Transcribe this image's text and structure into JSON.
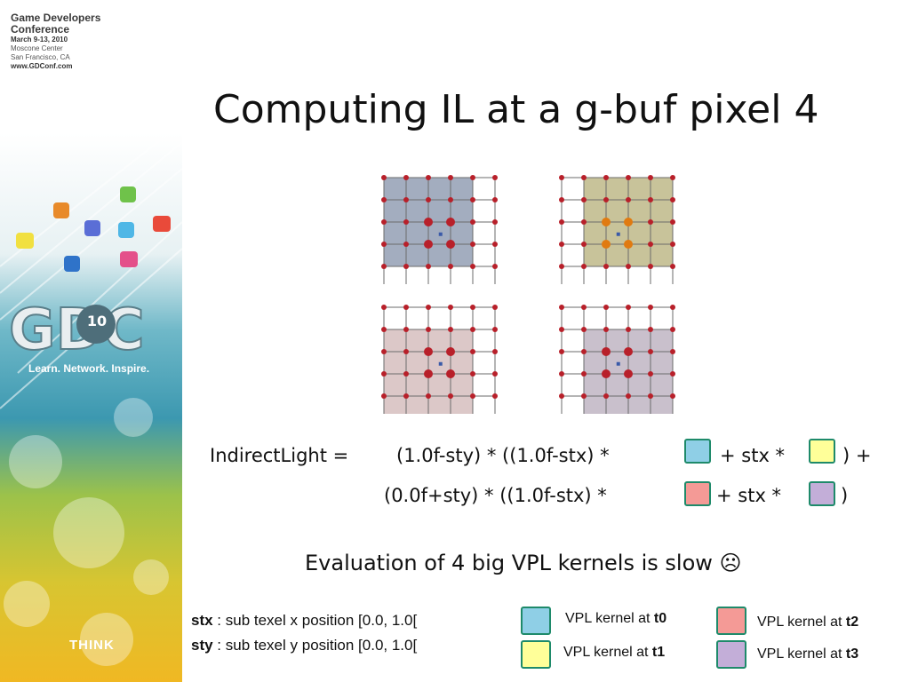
{
  "header": {
    "conf_name_1": "Game Developers",
    "conf_name_2": "Conference",
    "dates": "March 9-13, 2010",
    "venue": "Moscone Center",
    "city": "San Francisco, CA",
    "website": "www.GDConf.com",
    "tagline": "Learn. Network. Inspire.",
    "badge_number": "10",
    "sponsor": "THINK"
  },
  "slide": {
    "title": "Computing IL at a g-buf pixel 4"
  },
  "equation": {
    "lhs": "IndirectLight =",
    "line1_a": "(1.0f-sty) * ((1.0f-stx) *",
    "line1_b": "+ stx *",
    "line1_c": ") +",
    "line2_a": "(0.0f+sty) * ((1.0f-stx) *",
    "line2_b": "+ stx *",
    "line2_c": ")"
  },
  "note": {
    "evaluation": "Evaluation of 4 big VPL kernels is slow ☹"
  },
  "legend": {
    "stx_term": "stx",
    "stx_desc": " : sub texel x position [0.0, 1.0[",
    "sty_term": "sty",
    "sty_desc": " : sub texel y position [0.0, 1.0[",
    "k0_prefix": "VPL kernel at ",
    "k0_var": "t0",
    "k1_prefix": "VPL kernel at ",
    "k1_var": "t1",
    "k2_prefix": "VPL kernel at ",
    "k2_var": "t2",
    "k3_prefix": "VPL kernel at ",
    "k3_var": "t3"
  },
  "colors": {
    "kernel_t0": "#8fcfe6",
    "kernel_t1": "#ffff99",
    "kernel_t2": "#f49a96",
    "kernel_t3": "#c3aed8",
    "grid_t0_fill": "#a3adbf",
    "grid_t1_fill": "#c8c39a",
    "grid_t2_fill": "#dcc8c8",
    "grid_t3_fill": "#c9c0cc",
    "node": "#b8202a",
    "node_orange": "#e07a10"
  }
}
